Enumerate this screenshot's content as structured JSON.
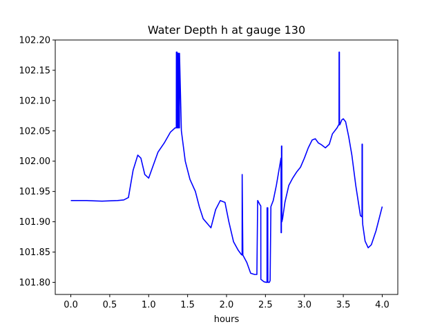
{
  "chart_data": {
    "type": "line",
    "title": "Water Depth h at gauge 130",
    "xlabel": "hours",
    "ylabel": "",
    "xlim": [
      -0.2,
      4.2
    ],
    "ylim": [
      101.78,
      102.2
    ],
    "xticks": [
      "0.0",
      "0.5",
      "1.0",
      "1.5",
      "2.0",
      "2.5",
      "3.0",
      "3.5",
      "4.0"
    ],
    "yticks": [
      "101.80",
      "101.85",
      "101.90",
      "101.95",
      "102.00",
      "102.05",
      "102.10",
      "102.15",
      "102.20"
    ],
    "grid": false,
    "series": [
      {
        "color": "#0000ff",
        "x": [
          0.0,
          0.2,
          0.4,
          0.6,
          0.68,
          0.74,
          0.8,
          0.86,
          0.9,
          0.95,
          1.0,
          1.05,
          1.12,
          1.2,
          1.28,
          1.34,
          1.355,
          1.356,
          1.365,
          1.366,
          1.375,
          1.376,
          1.385,
          1.386,
          1.395,
          1.396,
          1.42,
          1.47,
          1.53,
          1.6,
          1.65,
          1.7,
          1.8,
          1.86,
          1.92,
          1.98,
          2.03,
          2.09,
          2.15,
          2.19,
          2.2,
          2.201,
          2.21,
          2.26,
          2.31,
          2.36,
          2.39,
          2.4,
          2.401,
          2.43,
          2.44,
          2.441,
          2.48,
          2.51,
          2.52,
          2.521,
          2.53,
          2.531,
          2.55,
          2.56,
          2.57,
          2.6,
          2.64,
          2.68,
          2.7,
          2.701,
          2.705,
          2.706,
          2.71,
          2.711,
          2.72,
          2.75,
          2.8,
          2.85,
          2.9,
          2.95,
          3.0,
          3.05,
          3.1,
          3.14,
          3.18,
          3.22,
          3.27,
          3.32,
          3.36,
          3.42,
          3.44,
          3.445,
          3.446,
          3.45,
          3.451,
          3.455,
          3.48,
          3.5,
          3.53,
          3.57,
          3.61,
          3.66,
          3.72,
          3.74,
          3.741,
          3.745,
          3.746,
          3.75,
          3.78,
          3.82,
          3.86,
          3.92,
          4.0
        ],
        "y": [
          101.935,
          101.935,
          101.934,
          101.935,
          101.936,
          101.94,
          101.985,
          102.01,
          102.005,
          101.978,
          101.972,
          101.99,
          102.015,
          102.03,
          102.048,
          102.055,
          102.055,
          102.18,
          102.18,
          102.055,
          102.055,
          102.178,
          102.178,
          102.055,
          102.055,
          102.178,
          102.05,
          102.0,
          101.97,
          101.95,
          101.925,
          101.905,
          101.89,
          101.92,
          101.935,
          101.932,
          101.9,
          101.867,
          101.853,
          101.846,
          101.845,
          101.978,
          101.845,
          101.833,
          101.815,
          101.813,
          101.813,
          101.935,
          101.935,
          101.928,
          101.926,
          101.805,
          101.801,
          101.8,
          101.8,
          101.923,
          101.923,
          101.8,
          101.8,
          101.803,
          101.925,
          101.935,
          101.96,
          101.99,
          102.005,
          101.882,
          101.882,
          102.025,
          102.025,
          101.9,
          101.905,
          101.932,
          101.96,
          101.972,
          101.982,
          101.99,
          102.005,
          102.022,
          102.035,
          102.037,
          102.03,
          102.027,
          102.022,
          102.028,
          102.045,
          102.055,
          102.06,
          102.06,
          102.18,
          102.18,
          102.06,
          102.06,
          102.068,
          102.07,
          102.065,
          102.04,
          102.01,
          101.96,
          101.91,
          101.908,
          102.028,
          102.028,
          101.905,
          101.895,
          101.868,
          101.857,
          101.862,
          101.885,
          101.925
        ]
      }
    ]
  }
}
